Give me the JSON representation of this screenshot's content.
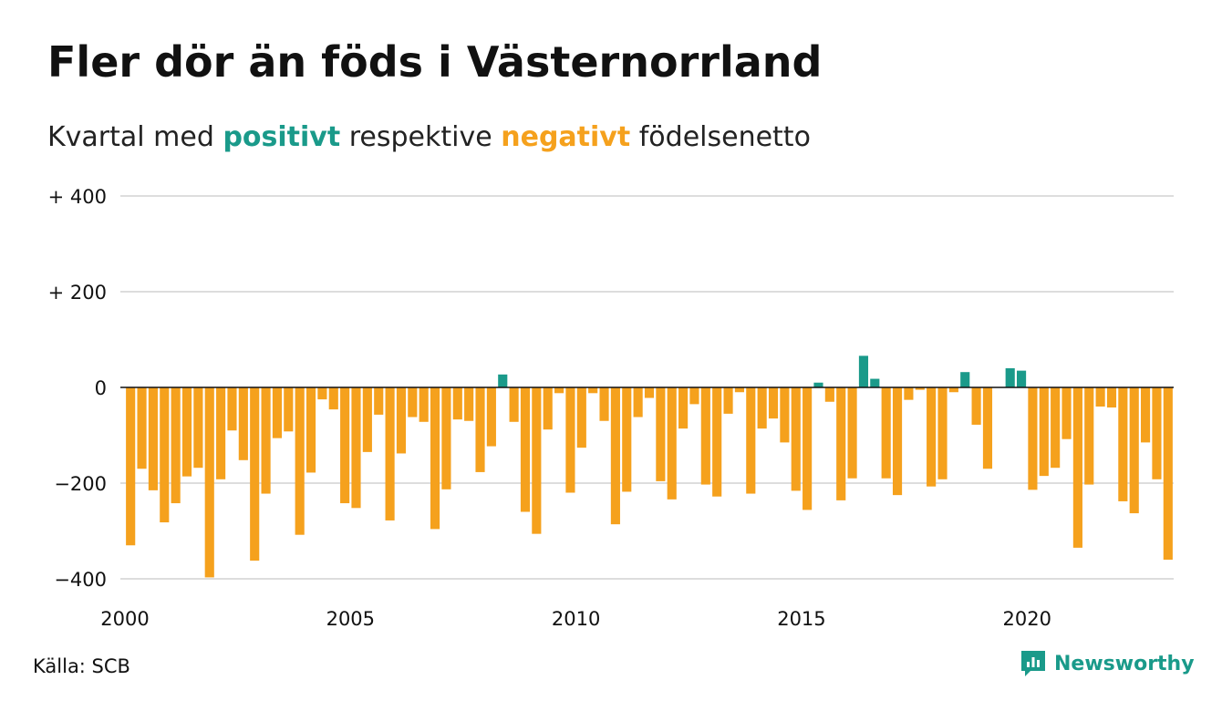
{
  "title": "Fler dör än föds i Västernorrland",
  "subtitle": {
    "prefix": "Kvartal med",
    "positive": "positivt",
    "middle": "respektive",
    "negative": "negativt",
    "suffix": "födelsenetto"
  },
  "source": "Källa: SCB",
  "logo_text": "Newsworthy",
  "colors": {
    "positive": "#1a9a8a",
    "negative": "#f5a11d",
    "grid": "#dddddd",
    "zero": "#111111"
  },
  "chart_data": {
    "type": "bar",
    "title": "Fler dör än föds i Västernorrland",
    "subtitle": "Kvartal med positivt respektive negativt födelsenetto",
    "ylim": [
      -400,
      400
    ],
    "yticks": [
      {
        "value": 400,
        "label": "+ 400"
      },
      {
        "value": 200,
        "label": "+ 200"
      },
      {
        "value": 0,
        "label": "0"
      },
      {
        "value": -200,
        "label": "−200"
      },
      {
        "value": -400,
        "label": "−400"
      }
    ],
    "xticks": [
      "2000",
      "2005",
      "2010",
      "2015",
      "2020"
    ],
    "first_year": 2000,
    "grid": true,
    "values": [
      -330,
      -170,
      -215,
      -282,
      -242,
      -186,
      -168,
      -397,
      -192,
      -90,
      -152,
      -362,
      -222,
      -106,
      -92,
      -308,
      -178,
      -25,
      -46,
      -242,
      -252,
      -135,
      -57,
      -278,
      -138,
      -62,
      -72,
      -296,
      -213,
      -67,
      -70,
      -177,
      -123,
      27,
      -72,
      -260,
      -306,
      -88,
      -12,
      -220,
      -126,
      -12,
      -70,
      -286,
      -218,
      -62,
      -22,
      -196,
      -234,
      -86,
      -35,
      -203,
      -228,
      -55,
      -10,
      -222,
      -86,
      -65,
      -115,
      -216,
      -256,
      10,
      -30,
      -236,
      -190,
      66,
      18,
      -190,
      -225,
      -26,
      -5,
      -207,
      -192,
      -10,
      32,
      -78,
      -170,
      0,
      40,
      35,
      -214,
      -185,
      -168,
      -108,
      -335,
      -203,
      -40,
      -42,
      -238,
      -263,
      -115,
      -192,
      -360
    ]
  }
}
